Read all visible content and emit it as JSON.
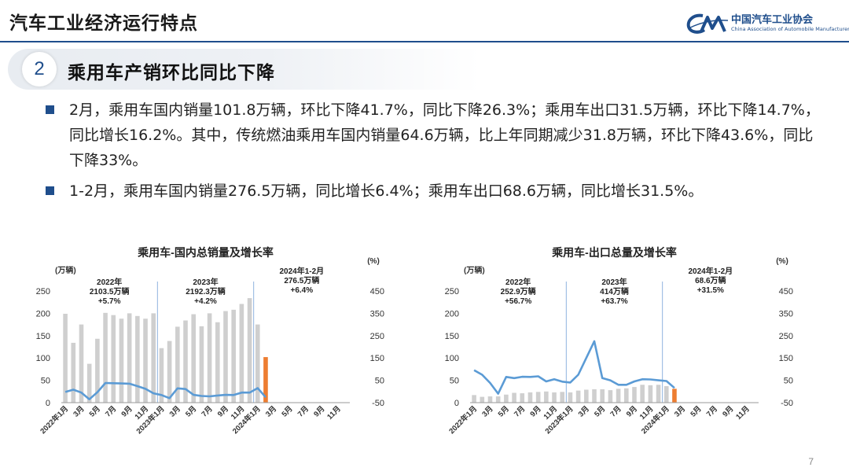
{
  "header": {
    "title": "汽车工业经济运行特点",
    "org_name_cn": "中国汽车工业协会",
    "org_name_en": "China Association of Automobile Manufacturers",
    "accent": "#1f4e8c"
  },
  "section": {
    "number": "2",
    "title": "乘用车产销环比同比下降"
  },
  "bullets": [
    "2月，乘用车国内销量101.8万辆，环比下降41.7%，同比下降26.3%；乘用车出口31.5万辆，环比下降14.7%，同比增长16.2%。其中，传统燃油乘用车国内销量64.6万辆，比上年同期减少31.8万辆，环比下降43.6%，同比下降33%。",
    "1-2月，乘用车国内销量276.5万辆，同比增长6.4%；乘用车出口68.6万辆，同比增长31.5%。"
  ],
  "page_number": "7",
  "chart_data": [
    {
      "type": "bar",
      "title": "乘用车-国内总销量及增长率",
      "ylabel": "(万辆)",
      "y2label": "(%)",
      "ylim": [
        0,
        250
      ],
      "y2lim": [
        -50,
        450
      ],
      "yticks": [
        "0",
        "50",
        "100",
        "150",
        "200",
        "250"
      ],
      "y2ticks": [
        "-50",
        "50",
        "150",
        "250",
        "350",
        "450"
      ],
      "xtick_labels": [
        "2022年1月",
        "3月",
        "5月",
        "7月",
        "9月",
        "11月",
        "2023年1月",
        "3月",
        "5月",
        "7月",
        "9月",
        "11月",
        "2024年1月",
        "3月",
        "5月",
        "7月",
        "9月",
        "11月"
      ],
      "bar_color": "#cfcfcf",
      "highlight_color": "#ed7d31",
      "line_color": "#5b9bd5",
      "divider_color": "#8fb4de",
      "values": [
        199,
        134,
        175,
        87,
        143,
        201,
        196,
        188,
        200,
        194,
        188,
        200,
        122,
        138,
        170,
        184,
        198,
        171,
        200,
        180,
        205,
        208,
        221,
        234,
        175,
        102
      ],
      "growth": [
        -2,
        8,
        -5,
        -35,
        -3,
        38,
        37,
        36,
        35,
        24,
        12,
        -8,
        -16,
        -30,
        14,
        11,
        -15,
        -20,
        -22,
        -18,
        -15,
        -16,
        -5,
        -5,
        15,
        -26
      ],
      "annotations": [
        {
          "lines": [
            "2022年",
            "2103.5万辆",
            "+5.7%"
          ]
        },
        {
          "lines": [
            "2023年",
            "2192.3万辆",
            "+4.2%"
          ]
        },
        {
          "lines": [
            "2024年1-2月",
            "276.5万辆",
            "+6.4%"
          ]
        }
      ]
    },
    {
      "type": "bar",
      "title": "乘用车-出口总量及增长率",
      "ylabel": "(万辆)",
      "y2label": "(%)",
      "ylim": [
        0,
        250
      ],
      "y2lim": [
        -50,
        450
      ],
      "yticks": [
        "0",
        "50",
        "100",
        "150",
        "200",
        "250"
      ],
      "y2ticks": [
        "-50",
        "50",
        "150",
        "250",
        "350",
        "450"
      ],
      "xtick_labels": [
        "2022年1月",
        "3月",
        "5月",
        "7月",
        "9月",
        "11月",
        "2023年1月",
        "3月",
        "5月",
        "7月",
        "9月",
        "11月",
        "2024年1月",
        "3月",
        "5月",
        "7月",
        "9月",
        "11月"
      ],
      "bar_color": "#cfcfcf",
      "highlight_color": "#ed7d31",
      "line_color": "#5b9bd5",
      "divider_color": "#8fb4de",
      "values": [
        17,
        13,
        14,
        14,
        18,
        22,
        21,
        23,
        24,
        25,
        23,
        24,
        23,
        27,
        29,
        30,
        30,
        28,
        31,
        32,
        35,
        40,
        39,
        40,
        37,
        31
      ],
      "growth": [
        95,
        75,
        38,
        -10,
        65,
        60,
        66,
        65,
        68,
        45,
        55,
        44,
        40,
        75,
        150,
        225,
        60,
        50,
        30,
        30,
        45,
        55,
        54,
        50,
        47,
        16
      ],
      "annotations": [
        {
          "lines": [
            "2022年",
            "252.9万辆",
            "+56.7%"
          ]
        },
        {
          "lines": [
            "2023年",
            "414万辆",
            "+63.7%"
          ]
        },
        {
          "lines": [
            "2024年1-2月",
            "68.6万辆",
            "+31.5%"
          ]
        }
      ]
    }
  ]
}
